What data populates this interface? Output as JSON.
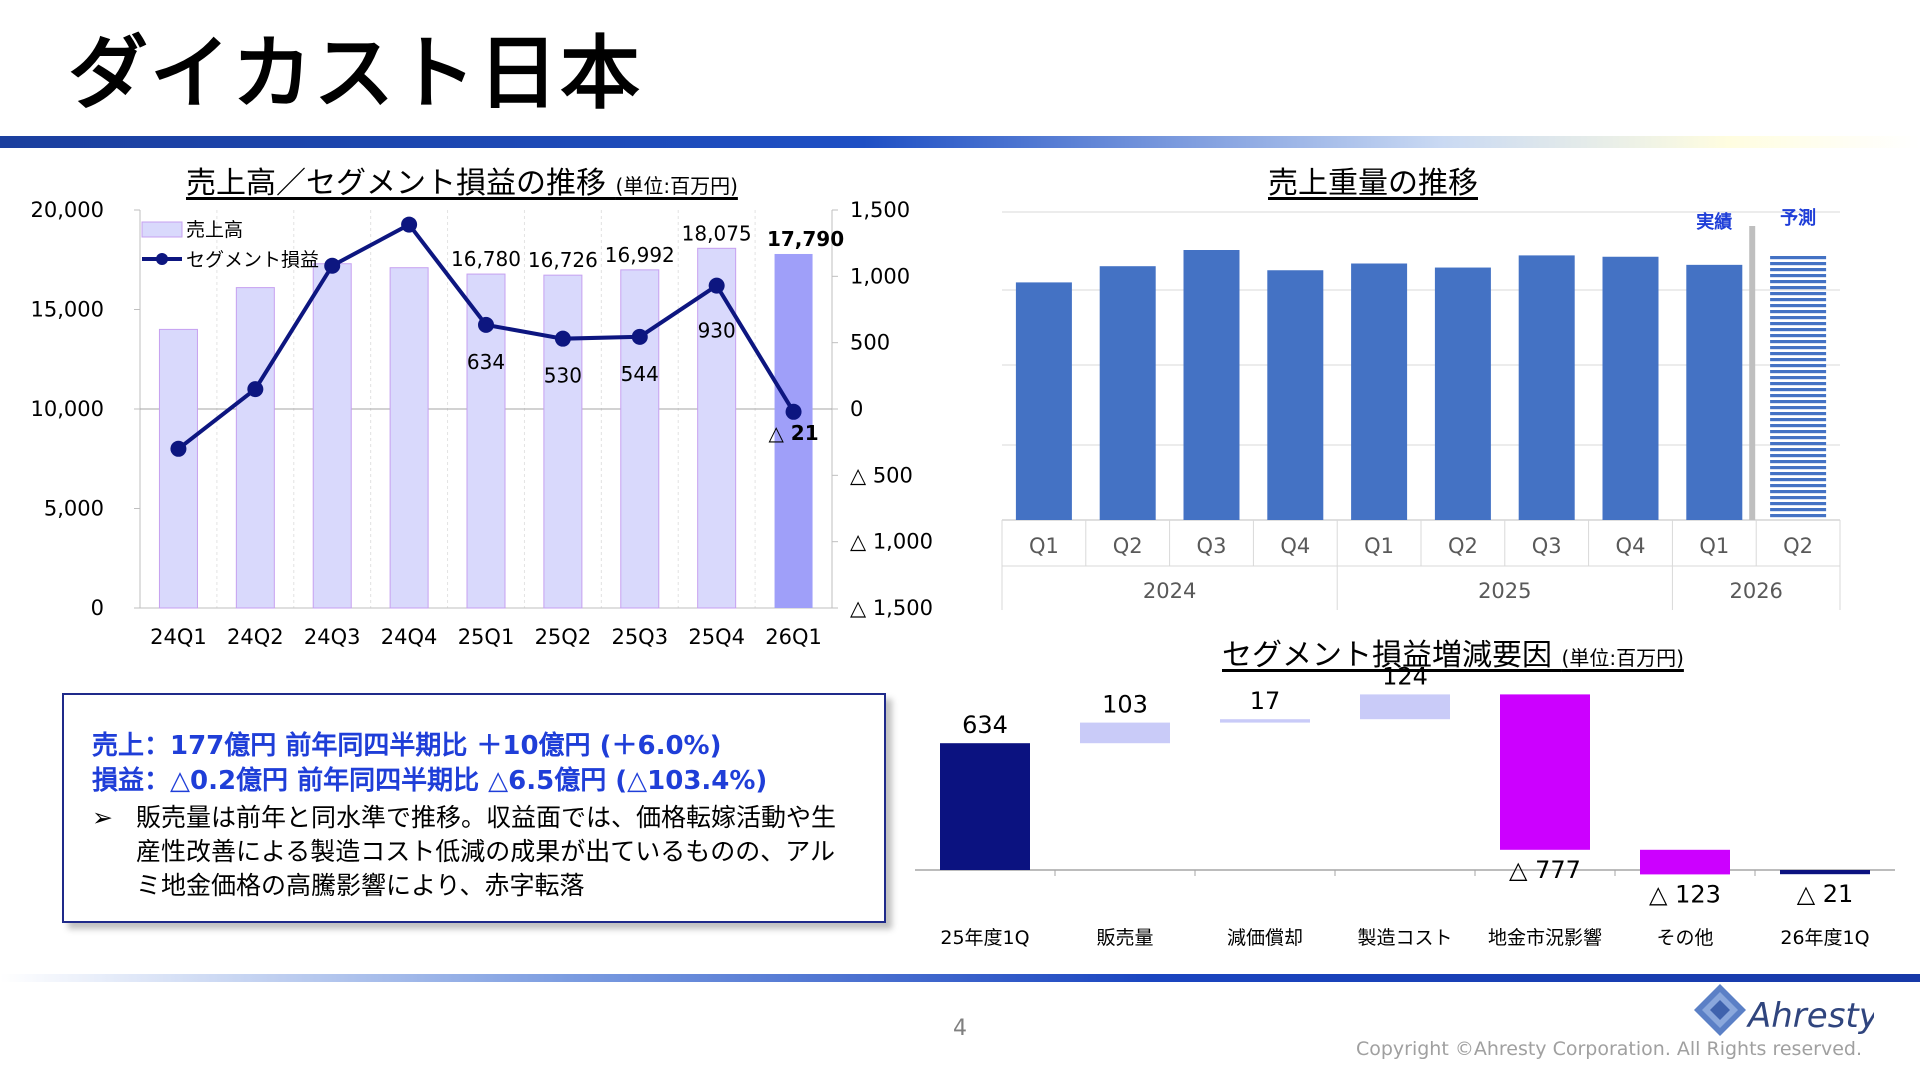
{
  "page": {
    "title": "ダイカスト日本",
    "page_number": "4",
    "copyright": "Copyright ©Ahresty Corporation. All Rights reserved.",
    "logo_text": "Ahresty"
  },
  "colors": {
    "bar_fill": "#d9d9fc",
    "bar_edge": "#c6a0f0",
    "bar_forecast": "#9f9ff9",
    "line": "#0d1680",
    "weight_bar": "#4472c4",
    "neg_factor": "#cc00ff",
    "dark_bar": "#0b1280",
    "light_factor": "#c9cbf8",
    "highlight_text": "#1f3ed8"
  },
  "chart_data": [
    {
      "type": "bar+line",
      "title": "売上高／セグメント損益の推移",
      "unit_label": "(単位:百万円)",
      "categories": [
        "24Q1",
        "24Q2",
        "24Q3",
        "24Q4",
        "25Q1",
        "25Q2",
        "25Q3",
        "25Q4",
        "26Q1"
      ],
      "series": [
        {
          "name": "売上高",
          "values": [
            14000,
            16100,
            17300,
            17100,
            16780,
            16726,
            16992,
            18075,
            17790
          ],
          "labels": [
            "",
            "",
            "",
            "",
            "16,780",
            "16,726",
            "16,992",
            "18,075",
            "17,790"
          ]
        },
        {
          "name": "セグメント損益",
          "values": [
            -300,
            150,
            1080,
            1390,
            634,
            530,
            544,
            930,
            -21
          ],
          "labels": [
            "",
            "",
            "",
            "",
            "634",
            "530",
            "544",
            "930",
            "△ 21"
          ]
        }
      ],
      "y_left": {
        "min": 0,
        "max": 20000,
        "ticks": [
          "0",
          "5,000",
          "10,000",
          "15,000",
          "20,000"
        ]
      },
      "y_right": {
        "min": -1500,
        "max": 1500,
        "ticks": [
          "△ 1,500",
          "△ 1,000",
          "△ 500",
          "0",
          "500",
          "1,000",
          "1,500"
        ]
      },
      "legend": "top-left"
    },
    {
      "type": "bar",
      "title": "売上重量の推移",
      "quarters": [
        "Q1",
        "Q2",
        "Q3",
        "Q4",
        "Q1",
        "Q2",
        "Q3",
        "Q4",
        "Q1",
        "Q2"
      ],
      "years": [
        "2024",
        "2025",
        "2026"
      ],
      "values": [
        0.88,
        0.94,
        1.0,
        0.925,
        0.95,
        0.935,
        0.98,
        0.975,
        0.945,
        0.98
      ],
      "legend_labels": {
        "actual": "実績",
        "forecast": "予測"
      }
    },
    {
      "type": "waterfall",
      "title": "セグメント損益増減要因",
      "unit_label": "(単位:百万円)",
      "categories": [
        "25年度1Q",
        "販売量",
        "減価償却",
        "製造コスト",
        "地金市況影響",
        "その他",
        "26年度1Q"
      ],
      "values": [
        634,
        103,
        17,
        124,
        -777,
        -123,
        -21
      ],
      "labels": [
        "634",
        "103",
        "17",
        "124",
        "△ 777",
        "△ 123",
        "△ 21"
      ],
      "kinds": [
        "total",
        "delta",
        "delta",
        "delta",
        "delta",
        "delta",
        "total"
      ]
    }
  ],
  "summary": {
    "sales_line": "売上：177億円 前年同四半期比 ＋10億円 (＋6.0%)",
    "profit_line": "損益：△0.2億円 前年同四半期比 △6.5億円 (△103.4%)",
    "bullet_mark": "➢",
    "bullet_text": "販売量は前年と同水準で推移。収益面では、価格転嫁活動や生産性改善による製造コスト低減の成果が出ているものの、アルミ地金価格の高騰影響により、赤字転落"
  }
}
